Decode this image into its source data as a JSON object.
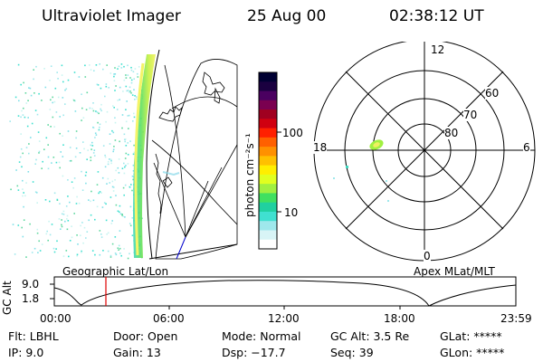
{
  "header": {
    "instrument": "Ultraviolet Imager",
    "date": "25 Aug 00",
    "time": "02:38:12 UT"
  },
  "colorbar": {
    "unit_label": "photon cm⁻²s⁻¹",
    "ticks": [
      "100",
      "10"
    ],
    "colors": [
      "#000033",
      "#1a0040",
      "#4a0060",
      "#7a0050",
      "#a00020",
      "#d00010",
      "#ff2000",
      "#ff6000",
      "#ff9000",
      "#ffc000",
      "#ffee00",
      "#e0ff20",
      "#a0f040",
      "#40e060",
      "#20d0a0",
      "#40e0d0",
      "#9fe8ec",
      "#d8f4f6",
      "#ffffff"
    ]
  },
  "left_panel": {
    "caption": "Geographic Lat/Lon"
  },
  "right_panel": {
    "caption": "Apex MLat/MLT",
    "mlt_labels": {
      "top": "12",
      "left": "18",
      "right": "6",
      "bottom": "0"
    },
    "lat_labels": [
      "60",
      "70",
      "80"
    ]
  },
  "altitude_plot": {
    "ylabel": "GC Alt",
    "yticks": [
      "9.0",
      "1.8"
    ],
    "xticks": [
      "00:00",
      "06:00",
      "12:00",
      "18:00",
      "23:59"
    ],
    "marker_color": "#e00000"
  },
  "info": {
    "filter": "Flt: LBHL",
    "ip": "IP: 9.0",
    "door": "Door: Open",
    "gain": "Gain: 13",
    "mode": "Mode: Normal",
    "dsp": "Dsp: −17.7",
    "gc_alt": "GC Alt: 3.5 Re",
    "seq": "Seq: 39",
    "glat": "GLat: *****",
    "glon": "GLon: *****"
  }
}
